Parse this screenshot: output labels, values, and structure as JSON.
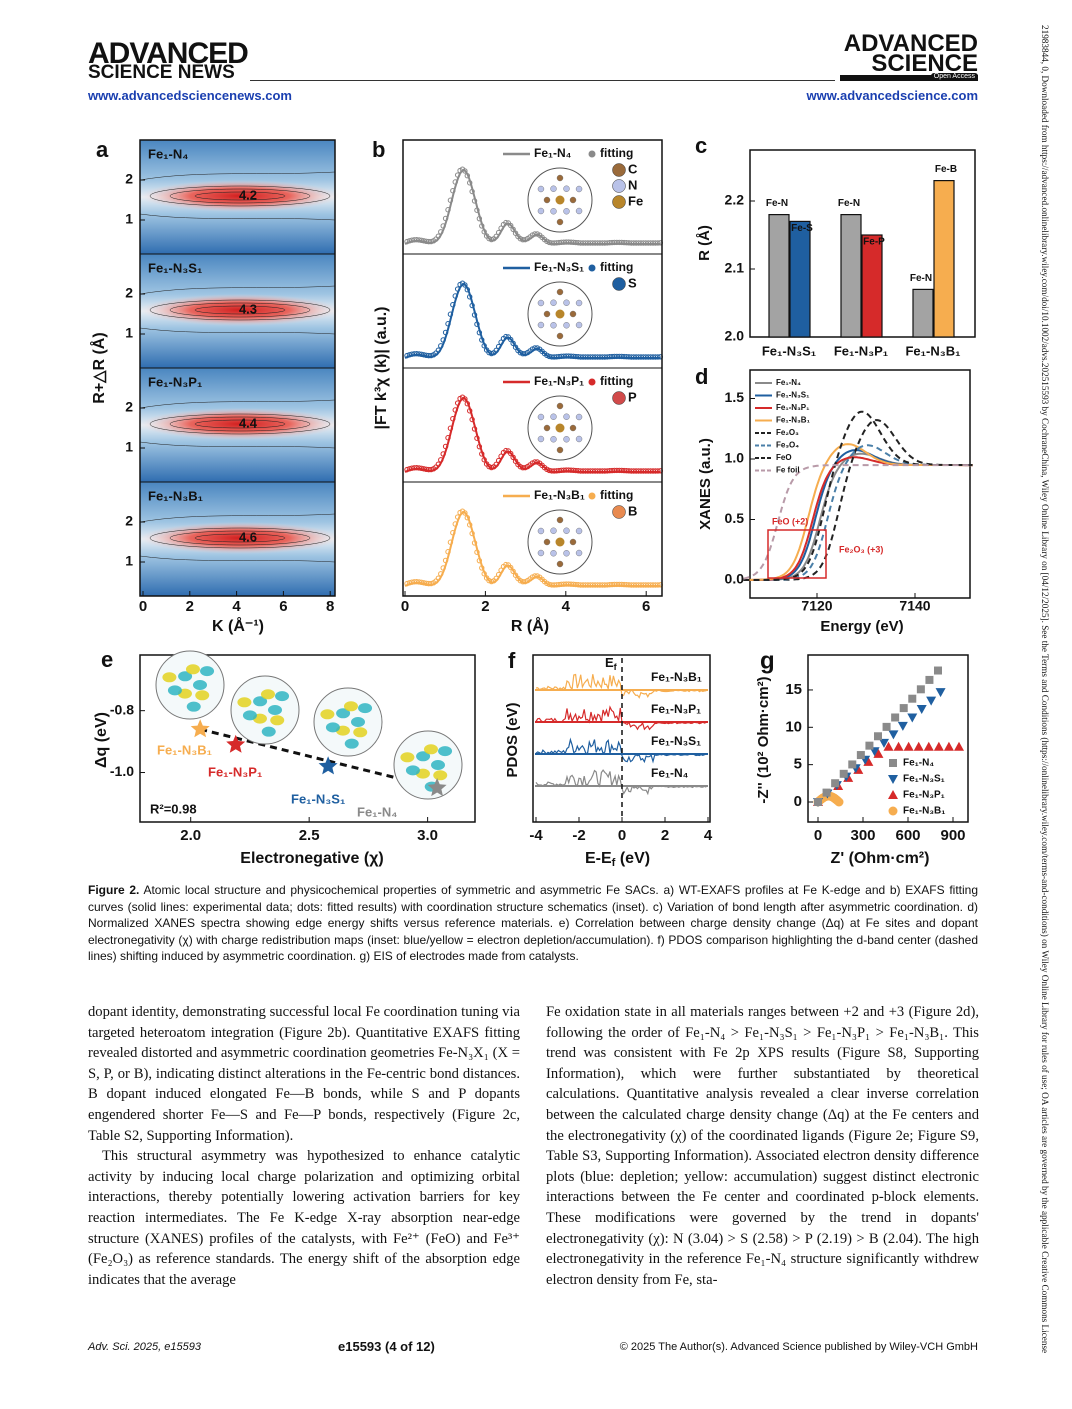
{
  "header": {
    "left_logo_1": "ADVANCED",
    "left_logo_2": "SCIENCE NEWS",
    "left_url": "www.advancedsciencenews.com",
    "right_logo_1": "ADVANCED",
    "right_logo_2": "SCIENCE",
    "right_badge": "Open Access",
    "right_url": "www.advancedscience.com"
  },
  "side_note": "21983844, 0, Downloaded from https://advanced.onlinelibrary.wiley.com/doi/10.1002/advs.202515593 by CochraneChina, Wiley Online Library on [04/12/2025]. See the Terms and Conditions (https://onlinelibrary.wiley.com/terms-and-conditions) on Wiley Online Library for rules of use; OA articles are governed by the applicable Creative Commons License",
  "figure": {
    "a": {
      "label": "a",
      "y_label": "R+△R (Å)",
      "x_label": "K (Å⁻¹)",
      "xticks": [
        0,
        2,
        4,
        6,
        8
      ],
      "yticks": [
        1,
        2
      ],
      "maps": [
        {
          "name": "Fe₁-N₄",
          "peak": 4.2
        },
        {
          "name": "Fe₁-N₃S₁",
          "peak": 4.3
        },
        {
          "name": "Fe₁-N₃P₁",
          "peak": 4.4
        },
        {
          "name": "Fe₁-N₃B₁",
          "peak": 4.6
        }
      ]
    },
    "b": {
      "label": "b",
      "y_label": "|FT k³χ (k)| (a.u.)",
      "x_label": "R (Å)",
      "xticks": [
        0,
        2,
        4,
        6
      ],
      "fit_label": "fitting",
      "curves": [
        {
          "name": "Fe₁-N₄",
          "atoms": [
            "C",
            "N",
            "Fe"
          ]
        },
        {
          "name": "Fe₁-N₃S₁",
          "atoms": [
            "S"
          ]
        },
        {
          "name": "Fe₁-N₃P₁",
          "atoms": [
            "P"
          ]
        },
        {
          "name": "Fe₁-N₃B₁",
          "atoms": [
            "B"
          ]
        }
      ]
    },
    "c": {
      "label": "c",
      "y_label": "R (Å)",
      "ylim": [
        2.0,
        2.275
      ],
      "yticks": [
        {
          "value": 2.0,
          "label": "2.0"
        },
        2.1,
        2.2
      ],
      "categories": [
        "Fe₁-N₃S₁",
        "Fe₁-N₃P₁",
        "Fe₁-N₃B₁"
      ],
      "series": [
        {
          "bond_labels": [
            "Fe-N",
            "Fe-N",
            "Fe-N"
          ],
          "values": [
            2.18,
            2.18,
            2.07
          ],
          "colors": [
            "#a3a3a3",
            "#a3a3a3",
            "#a3a3a3"
          ]
        },
        {
          "bond_labels": [
            "Fe-S",
            "Fe-P",
            "Fe-B"
          ],
          "values": [
            2.17,
            2.15,
            2.23
          ],
          "colors": [
            "#1f5fa0",
            "#d62a2a",
            "#f6ad4f"
          ]
        }
      ]
    },
    "d": {
      "label": "d",
      "y_label": "XANES (a.u.)",
      "x_label": "Energy (eV)",
      "xticks": [
        7120,
        7140
      ],
      "yticks": [
        {
          "value": 0.0,
          "label": "0.0"
        },
        0.5,
        {
          "value": 1.0,
          "label": "1.0"
        },
        1.5
      ],
      "legend": [
        "Fe₁-N₄",
        "Fe₁-N₃S₁",
        "Fe₁-N₃P₁",
        "Fe₁-N₃B₁",
        "Fe₂O₃",
        "Fe₃O₄",
        "FeO",
        "Fe foil"
      ],
      "notes": [
        "FeO (+2)",
        "Fe₂O₃ (+3)"
      ]
    },
    "e": {
      "label": "e",
      "y_label": "Δq (eV)",
      "x_label": "Electronegative (χ)",
      "fit_note": "R²=0.98",
      "xlim": [
        1.786,
        3.2
      ],
      "ylim": [
        -1.16,
        -0.62
      ],
      "xticks": [
        {
          "value": 2.0,
          "label": "2.0"
        },
        2.5,
        {
          "value": 3.0,
          "label": "3.0"
        }
      ],
      "yticks": [
        -0.8,
        {
          "value": -1.0,
          "label": "-1.0"
        }
      ],
      "names": [
        "Fe₁-N₃B₁",
        "Fe₁-N₃P₁",
        "Fe₁-N₃S₁",
        "Fe₁-N₄"
      ],
      "x": [
        2.04,
        2.19,
        2.58,
        3.04
      ],
      "y": [
        -0.86,
        -0.91,
        -0.98,
        -1.05
      ],
      "colors": [
        "#f6ad4f",
        "#d62a2a",
        "#1f5fa0",
        "#8a8a8a"
      ]
    },
    "f": {
      "label": "f",
      "y_label": "PDOS (eV)",
      "x_label": [
        "E-E",
        "f",
        " (eV)"
      ],
      "ef_label": [
        "E",
        "f"
      ],
      "xticks": [
        -4,
        -2,
        0,
        2,
        4
      ],
      "curves": [
        "Fe₁-N₃B₁",
        "Fe₁-N₃P₁",
        "Fe₁-N₃S₁",
        "Fe₁-N₄"
      ]
    },
    "g": {
      "label": "g",
      "y_label": "-Z'' (10² Ohm·cm²)",
      "x_label": "Z' (Ohm·cm²)",
      "xticks": [
        0,
        300,
        600,
        900
      ],
      "yticks": [
        0,
        5,
        10,
        15
      ],
      "legend": [
        "Fe₁-N₄",
        "Fe₁-N₃S₁",
        "Fe₁-N₃P₁",
        "Fe₁-N₃B₁"
      ]
    }
  },
  "caption": {
    "lead": "Figure 2.",
    "text": " Atomic local structure and physicochemical properties of symmetric and asymmetric Fe SACs. a) WT-EXAFS profiles at Fe K-edge and b) EXAFS fitting curves (solid lines: experimental data; dots: fitted results) with coordination structure schematics (inset). c) Variation of bond length after asymmetric coordination. d) Normalized XANES spectra showing edge energy shifts versus reference materials. e) Correlation between charge density change (Δq) at Fe sites and dopant electronegativity (χ) with charge redistribution maps (inset: blue/yellow = electron depletion/accumulation). f) PDOS comparison highlighting the d-band center (dashed lines) shifting induced by asymmetric coordination. g) EIS of electrodes made from catalysts."
  },
  "body": {
    "left": [
      "dopant identity, demonstrating successful local Fe coordination tuning via targeted heteroatom integration (Figure 2b). Quantitative EXAFS fitting revealed distorted and asymmetric coordination geometries Fe-N₃X₁ (X = S, P, or B), indicating distinct alterations in the Fe-centric bond distances. B dopant induced elongated Fe—B bonds, while S and P dopants engendered shorter Fe—S and Fe—P bonds, respectively (Figure 2c, Table S2, Supporting Information).",
      "This structural asymmetry was hypothesized to enhance catalytic activity by inducing local charge polarization and optimizing orbital interactions, thereby potentially lowering activation barriers for key reaction intermediates. The Fe K-edge X-ray absorption near-edge structure (XANES) profiles of the catalysts, with Fe²⁺ (FeO) and Fe³⁺ (Fe₂O₃) as reference standards. The energy shift of the absorption edge indicates that the average"
    ],
    "right": [
      "Fe oxidation state in all materials ranges between +2 and +3 (Figure 2d), following the order of Fe₁-N₄ > Fe₁-N₃S₁ > Fe₁-N₃P₁ > Fe₁-N₃B₁. This trend was consistent with Fe 2p XPS results (Figure S8, Supporting Information), which were further substantiated by theoretical calculations. Quantitative analysis revealed a clear inverse correlation between the calculated charge density change (Δq) at the Fe centers and the electronegativity (χ) of the coordinated ligands (Figure 2e; Figure S9, Table S3, Supporting Information). Associated electron density difference plots (blue: depletion; yellow: accumulation) suggest distinct electronic interactions between the Fe center and coordinated p-block elements. These modifications were governed by the trend in dopants' electronegativity (χ): N (3.04) > S (2.58) > P (2.19) > B (2.04). The high electronegativity in the reference Fe₁-N₄ structure significantly withdrew electron density from Fe, sta-"
    ]
  },
  "footer": {
    "left": "Adv. Sci. 2025, e15593",
    "center": "e15593 (4 of 12)",
    "right": "© 2025 The Author(s). Advanced Science published by Wiley-VCH GmbH"
  }
}
